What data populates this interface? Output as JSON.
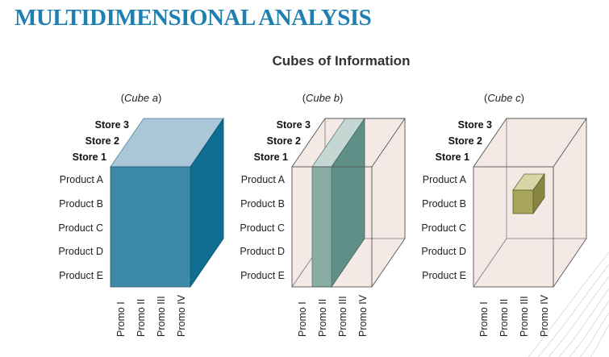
{
  "title": "MULTIDIMENSIONAL ANALYSIS",
  "subtitle": "Cubes of Information",
  "cubes": [
    {
      "caption_open": "(",
      "caption_word": "Cube",
      "caption_letter": "a",
      "caption_close": ")",
      "stores": [
        "Store 3",
        "Store 2",
        "Store 1"
      ],
      "products": [
        "Product A",
        "Product B",
        "Product C",
        "Product D",
        "Product E"
      ],
      "promos": [
        "Promo I",
        "Promo II",
        "Promo III",
        "Promo IV"
      ],
      "style": "solid"
    },
    {
      "caption_open": "(",
      "caption_word": "Cube",
      "caption_letter": "b",
      "caption_close": ")",
      "stores": [
        "Store 3",
        "Store 2",
        "Store 1"
      ],
      "products": [
        "Product A",
        "Product B",
        "Product C",
        "Product D",
        "Product E"
      ],
      "promos": [
        "Promo I",
        "Promo II",
        "Promo III",
        "Promo IV"
      ],
      "style": "slice"
    },
    {
      "caption_open": "(",
      "caption_word": "Cube",
      "caption_letter": "c",
      "caption_close": ")",
      "stores": [
        "Store 3",
        "Store 2",
        "Store 1"
      ],
      "products": [
        "Product A",
        "Product B",
        "Product C",
        "Product D",
        "Product E"
      ],
      "promos": [
        "Promo I",
        "Promo II",
        "Promo III",
        "Promo IV"
      ],
      "style": "cell"
    }
  ],
  "colors": {
    "title": "#1f7fb0",
    "cube_a_front": "#3d8aa8",
    "cube_a_top": "#a9c7d8",
    "cube_a_side": "#0f6e92",
    "wire_fill": "#f4e9e4",
    "slice_front": "#88aea4",
    "slice_dark": "#5f8f87",
    "slice_top": "#c4d7d2",
    "cell_front": "#a8a65a",
    "cell_top": "#d8d6a6",
    "cell_side": "#888542"
  }
}
